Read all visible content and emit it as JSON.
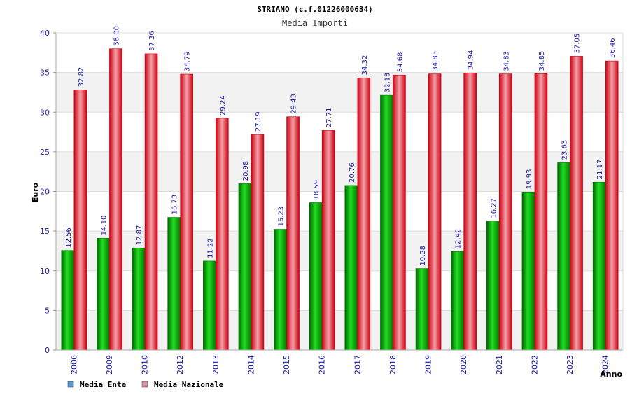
{
  "chart_data": {
    "type": "bar",
    "title": "STRIANO (c.f.01226000634)",
    "subtitle": "Media Importi",
    "xlabel": "Anno",
    "ylabel": "Euro",
    "ylim": [
      0,
      40
    ],
    "yticks": [
      0,
      5,
      10,
      15,
      20,
      25,
      30,
      35,
      40
    ],
    "grid": true,
    "legend_position": "bottom-left",
    "categories": [
      "2006",
      "2009",
      "2010",
      "2012",
      "2013",
      "2014",
      "2015",
      "2016",
      "2017",
      "2018",
      "2019",
      "2020",
      "2021",
      "2022",
      "2023",
      "2024"
    ],
    "series": [
      {
        "name": "Media Ente",
        "color": "#00aa00",
        "legend_color": "#5b9bd5",
        "values": [
          12.56,
          14.1,
          12.87,
          16.73,
          11.22,
          20.98,
          15.23,
          18.59,
          20.76,
          32.13,
          10.28,
          12.42,
          16.27,
          19.93,
          23.63,
          21.17
        ],
        "labels": [
          "12.56",
          "14.10",
          "12.87",
          "16.73",
          "11.22",
          "20.98",
          "15.23",
          "18.59",
          "20.76",
          "32.13",
          "10.28",
          "12.42",
          "16.27",
          "19.93",
          "23.63",
          "21.17"
        ]
      },
      {
        "name": "Media Nazionale",
        "color": "#ee1122",
        "legend_color": "#d98fb0",
        "values": [
          32.82,
          38.0,
          37.36,
          34.79,
          29.24,
          27.19,
          29.43,
          27.71,
          34.32,
          34.68,
          34.83,
          34.94,
          34.83,
          34.85,
          37.05,
          36.46
        ],
        "labels": [
          "32.82",
          "38.00",
          "37.36",
          "34.79",
          "29.24",
          "27.19",
          "29.43",
          "27.71",
          "34.32",
          "34.68",
          "34.83",
          "34.94",
          "34.83",
          "34.85",
          "37.05",
          "36.46"
        ]
      }
    ]
  }
}
